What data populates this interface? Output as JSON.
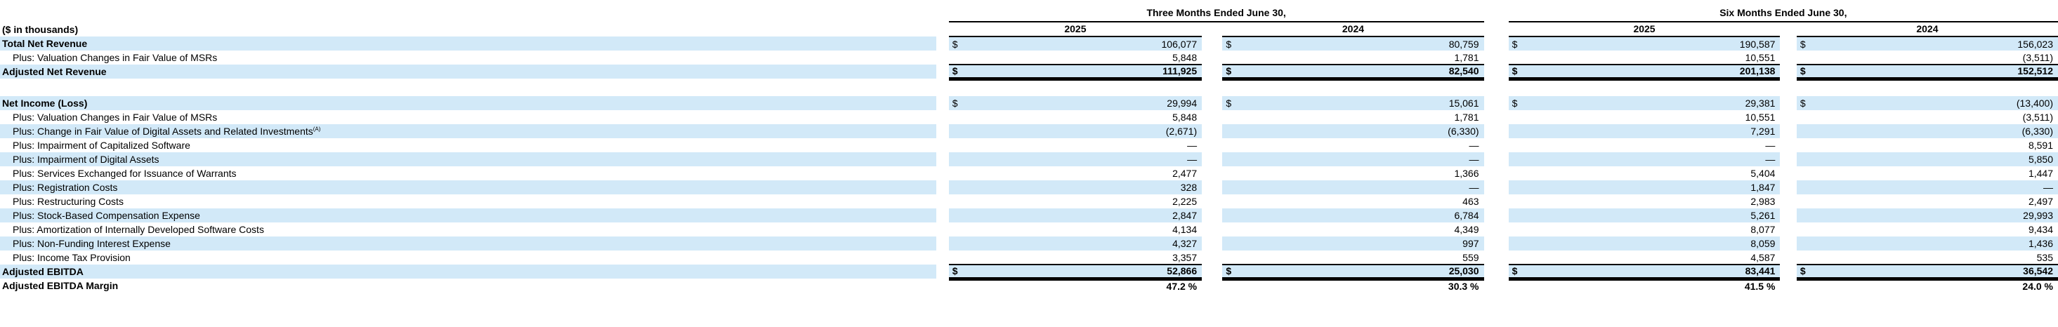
{
  "table": {
    "unit_label": "($ in thousands)",
    "column_groups": [
      {
        "label": "Three Months Ended June 30,",
        "years": [
          "2025",
          "2024"
        ]
      },
      {
        "label": "Six Months Ended June 30,",
        "years": [
          "2025",
          "2024"
        ]
      }
    ],
    "colors": {
      "stripe": "#d2e9f8",
      "rule": "#000000"
    },
    "rows": [
      {
        "label": "Total Net Revenue",
        "style": "section",
        "dollar": true,
        "values": [
          "106,077",
          "80,759",
          "190,587",
          "156,023"
        ]
      },
      {
        "label": "Plus: Valuation Changes in Fair Value of MSRs",
        "style": "item",
        "dollar": false,
        "values": [
          "5,848",
          "1,781",
          "10,551",
          "(3,511)"
        ]
      },
      {
        "label": "Adjusted Net Revenue",
        "style": "total",
        "dollar": true,
        "values": [
          "111,925",
          "82,540",
          "201,138",
          "152,512"
        ]
      },
      {
        "style": "spacer"
      },
      {
        "label": "Net Income (Loss)",
        "style": "section",
        "dollar": true,
        "values": [
          "29,994",
          "15,061",
          "29,381",
          "(13,400)"
        ]
      },
      {
        "label": "Plus: Valuation Changes in Fair Value of MSRs",
        "style": "item",
        "dollar": false,
        "values": [
          "5,848",
          "1,781",
          "10,551",
          "(3,511)"
        ]
      },
      {
        "label": "Plus: Change in Fair Value of Digital Assets and Related Investments",
        "footnote": "(A)",
        "style": "item",
        "dollar": false,
        "values": [
          "(2,671)",
          "(6,330)",
          "7,291",
          "(6,330)"
        ]
      },
      {
        "label": "Plus: Impairment of Capitalized Software",
        "style": "item",
        "dollar": false,
        "values": [
          "—",
          "—",
          "—",
          "8,591"
        ]
      },
      {
        "label": "Plus: Impairment of Digital Assets",
        "style": "item",
        "dollar": false,
        "values": [
          "—",
          "—",
          "—",
          "5,850"
        ]
      },
      {
        "label": "Plus: Services Exchanged for Issuance of Warrants",
        "style": "item",
        "dollar": false,
        "values": [
          "2,477",
          "1,366",
          "5,404",
          "1,447"
        ]
      },
      {
        "label": "Plus: Registration Costs",
        "style": "item",
        "dollar": false,
        "values": [
          "328",
          "—",
          "1,847",
          "—"
        ]
      },
      {
        "label": "Plus: Restructuring Costs",
        "style": "item",
        "dollar": false,
        "values": [
          "2,225",
          "463",
          "2,983",
          "2,497"
        ]
      },
      {
        "label": "Plus: Stock-Based Compensation Expense",
        "style": "item",
        "dollar": false,
        "values": [
          "2,847",
          "6,784",
          "5,261",
          "29,993"
        ]
      },
      {
        "label": "Plus: Amortization of Internally Developed Software Costs",
        "style": "item",
        "dollar": false,
        "values": [
          "4,134",
          "4,349",
          "8,077",
          "9,434"
        ]
      },
      {
        "label": "Plus: Non-Funding Interest Expense",
        "style": "item",
        "dollar": false,
        "values": [
          "4,327",
          "997",
          "8,059",
          "1,436"
        ]
      },
      {
        "label": "Plus: Income Tax Provision",
        "style": "item",
        "dollar": false,
        "values": [
          "3,357",
          "559",
          "4,587",
          "535"
        ]
      },
      {
        "label": "Adjusted EBITDA",
        "style": "total",
        "dollar": true,
        "values": [
          "52,866",
          "25,030",
          "83,441",
          "36,542"
        ]
      },
      {
        "label": "Adjusted EBITDA Margin",
        "style": "margin",
        "dollar": false,
        "values": [
          "47.2 %",
          "30.3 %",
          "41.5 %",
          "24.0 %"
        ]
      }
    ]
  }
}
